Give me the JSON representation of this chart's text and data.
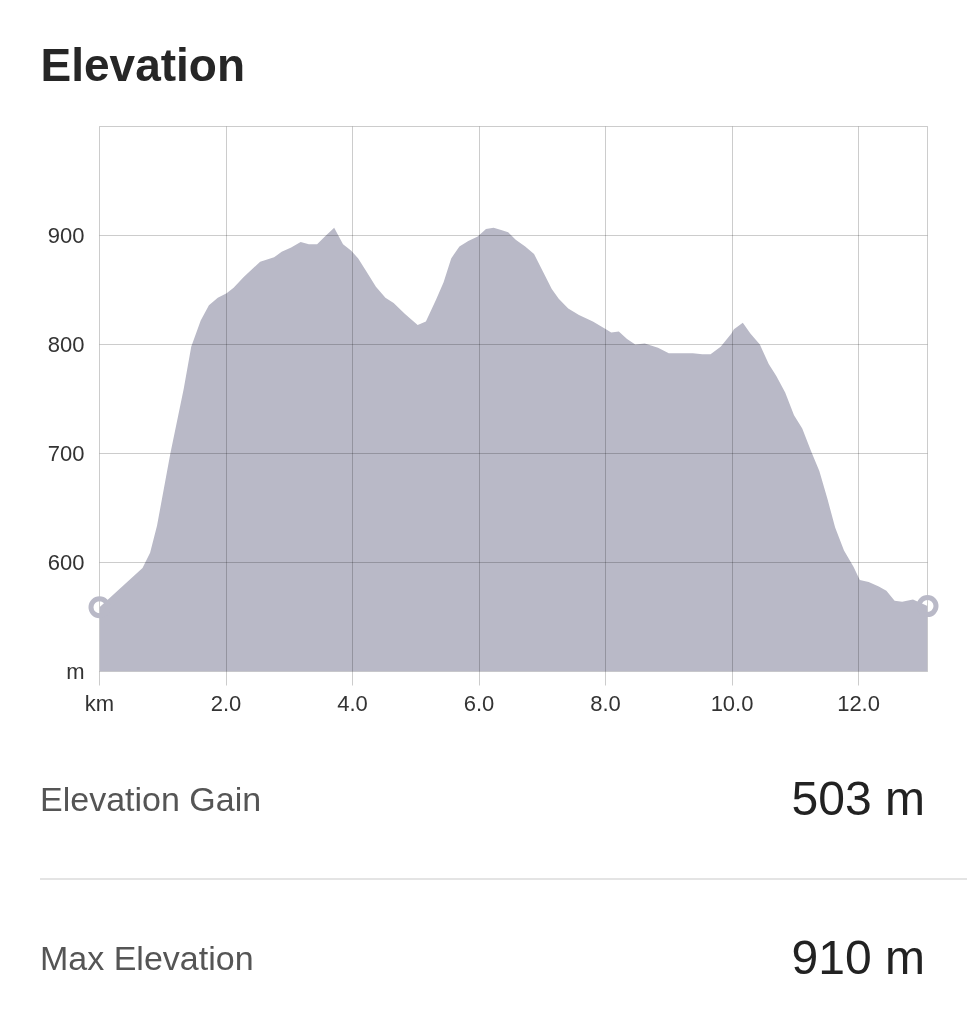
{
  "chart_data": {
    "type": "area",
    "title": "Elevation",
    "x": [
      0,
      0.68,
      0.8,
      0.91,
      1.12,
      1.33,
      1.45,
      1.6,
      1.73,
      1.87,
      2.01,
      2.12,
      2.28,
      2.54,
      2.76,
      2.88,
      3.03,
      3.18,
      3.31,
      3.44,
      3.58,
      3.71,
      3.85,
      3.98,
      4.09,
      4.22,
      4.37,
      4.52,
      4.65,
      4.83,
      5.03,
      5.16,
      5.32,
      5.44,
      5.56,
      5.69,
      5.83,
      5.98,
      6.11,
      6.23,
      6.35,
      6.46,
      6.58,
      6.73,
      6.87,
      7.01,
      7.15,
      7.26,
      7.41,
      7.58,
      7.8,
      7.98,
      8.09,
      8.21,
      8.34,
      8.47,
      8.62,
      8.83,
      9.0,
      9.14,
      9.38,
      9.53,
      9.66,
      9.82,
      9.99,
      10.03,
      10.17,
      10.29,
      10.44,
      10.58,
      10.7,
      10.84,
      10.98,
      11.11,
      11.25,
      11.38,
      11.51,
      11.63,
      11.77,
      11.92,
      12.02,
      12.16,
      12.32,
      12.44,
      12.57,
      12.69,
      12.86,
      13.09
    ],
    "series": [
      {
        "color": "#b9b9c7",
        "values": [
          559,
          595,
          609,
          634,
          700,
          759,
          798,
          822,
          836,
          843,
          847,
          852,
          862,
          876,
          880,
          885,
          889,
          894,
          892,
          892,
          900,
          907,
          892,
          886,
          879,
          867,
          853,
          843,
          838,
          828,
          818,
          821,
          841,
          857,
          879,
          890,
          895,
          899,
          906,
          907,
          905,
          903,
          896,
          890,
          883,
          867,
          851,
          842,
          833,
          827,
          821,
          815,
          811,
          812,
          805,
          800,
          801,
          797,
          792,
          792,
          792,
          791,
          791,
          798,
          810,
          814,
          820,
          810,
          800,
          782,
          771,
          756,
          735,
          723,
          702,
          684,
          658,
          632,
          611,
          596,
          584,
          582,
          578,
          574,
          565,
          564,
          566,
          560
        ]
      },
      {
        "type": "scatter",
        "x": [
          0,
          13.09
        ],
        "values": [
          559,
          560
        ],
        "color": "#b9b9c7",
        "marker": "circle"
      }
    ],
    "xlim": [
      0,
      13.09
    ],
    "ylim": [
      500,
      1000
    ],
    "xticks": [
      {
        "value": 0,
        "label": "km"
      },
      {
        "value": 2,
        "label": "2.0"
      },
      {
        "value": 4,
        "label": "4.0"
      },
      {
        "value": 6,
        "label": "6.0"
      },
      {
        "value": 8,
        "label": "8.0"
      },
      {
        "value": 10,
        "label": "10.0"
      },
      {
        "value": 12,
        "label": "12.0"
      }
    ],
    "yticks": [
      {
        "value": 500,
        "label": "m"
      },
      600,
      700,
      800,
      900
    ],
    "grid": true,
    "annotations": [
      "Elevation Gain",
      "503 m",
      "Max Elevation",
      "910 m"
    ]
  }
}
